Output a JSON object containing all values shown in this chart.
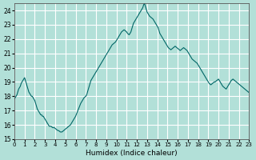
{
  "title": "",
  "xlabel": "Humidex (Indice chaleur)",
  "ylabel": "",
  "bg_color": "#b2e0d8",
  "grid_color": "#ffffff",
  "line_color": "#006666",
  "ylim": [
    15,
    24.5
  ],
  "xlim": [
    0,
    23
  ],
  "yticks": [
    15,
    16,
    17,
    18,
    19,
    20,
    21,
    22,
    23,
    24
  ],
  "xticks": [
    0,
    1,
    2,
    3,
    4,
    5,
    6,
    7,
    8,
    9,
    10,
    11,
    12,
    13,
    14,
    15,
    16,
    17,
    18,
    19,
    20,
    21,
    22,
    23
  ],
  "x": [
    0.0,
    0.083,
    0.167,
    0.25,
    0.333,
    0.417,
    0.5,
    0.583,
    0.667,
    0.75,
    0.833,
    0.917,
    1.0,
    1.083,
    1.167,
    1.25,
    1.333,
    1.417,
    1.5,
    1.583,
    1.667,
    1.75,
    1.833,
    1.917,
    2.0,
    2.083,
    2.167,
    2.25,
    2.333,
    2.417,
    2.5,
    2.583,
    2.667,
    2.75,
    2.833,
    2.917,
    3.0,
    3.083,
    3.167,
    3.25,
    3.333,
    3.417,
    3.5,
    3.583,
    3.667,
    3.75,
    3.833,
    3.917,
    4.0,
    4.083,
    4.167,
    4.25,
    4.333,
    4.417,
    4.5,
    4.583,
    4.667,
    4.75,
    4.833,
    4.917,
    5.0,
    5.083,
    5.167,
    5.25,
    5.333,
    5.417,
    5.5,
    5.583,
    5.667,
    5.75,
    5.833,
    5.917,
    6.0,
    6.083,
    6.167,
    6.25,
    6.333,
    6.417,
    6.5,
    6.583,
    6.667,
    6.75,
    6.833,
    6.917,
    7.0,
    7.083,
    7.167,
    7.25,
    7.333,
    7.417,
    7.5,
    7.583,
    7.667,
    7.75,
    7.833,
    7.917,
    8.0,
    8.083,
    8.167,
    8.25,
    8.333,
    8.417,
    8.5,
    8.583,
    8.667,
    8.75,
    8.833,
    8.917,
    9.0,
    9.083,
    9.167,
    9.25,
    9.333,
    9.417,
    9.5,
    9.583,
    9.667,
    9.75,
    9.833,
    9.917,
    10.0,
    10.083,
    10.167,
    10.25,
    10.333,
    10.417,
    10.5,
    10.583,
    10.667,
    10.75,
    10.833,
    10.917,
    11.0,
    11.083,
    11.167,
    11.25,
    11.333,
    11.417,
    11.5,
    11.583,
    11.667,
    11.75,
    11.833,
    11.917,
    12.0,
    12.083,
    12.167,
    12.25,
    12.333,
    12.417,
    12.5,
    12.583,
    12.667,
    12.75,
    12.833,
    12.917,
    13.0,
    13.083,
    13.167,
    13.25,
    13.333,
    13.417,
    13.5,
    13.583,
    13.667,
    13.75,
    13.833,
    13.917,
    14.0,
    14.083,
    14.167,
    14.25,
    14.333,
    14.417,
    14.5,
    14.583,
    14.667,
    14.75,
    14.833,
    14.917,
    15.0,
    15.083,
    15.167,
    15.25,
    15.333,
    15.417,
    15.5,
    15.583,
    15.667,
    15.75,
    15.833,
    15.917,
    16.0,
    16.083,
    16.167,
    16.25,
    16.333,
    16.417,
    16.5,
    16.583,
    16.667,
    16.75,
    16.833,
    16.917,
    17.0,
    17.083,
    17.167,
    17.25,
    17.333,
    17.417,
    17.5,
    17.583,
    17.667,
    17.75,
    17.833,
    17.917,
    18.0,
    18.083,
    18.167,
    18.25,
    18.333,
    18.417,
    18.5,
    18.583,
    18.667,
    18.75,
    18.833,
    18.917,
    19.0,
    19.083,
    19.167,
    19.25,
    19.333,
    19.417,
    19.5,
    19.583,
    19.667,
    19.75,
    19.833,
    19.917,
    20.0,
    20.083,
    20.167,
    20.25,
    20.333,
    20.417,
    20.5,
    20.583,
    20.667,
    20.75,
    20.833,
    20.917,
    21.0,
    21.083,
    21.167,
    21.25,
    21.333,
    21.417,
    21.5,
    21.583,
    21.667,
    21.75,
    21.833,
    21.917,
    22.0,
    22.083,
    22.167,
    22.25,
    22.333,
    22.417,
    22.5,
    22.583,
    22.667,
    22.75,
    22.833,
    22.917,
    23.0
  ],
  "y": [
    17.8,
    17.9,
    18.0,
    18.1,
    18.3,
    18.5,
    18.6,
    18.7,
    18.9,
    19.0,
    19.1,
    19.2,
    19.3,
    19.1,
    18.9,
    18.7,
    18.5,
    18.3,
    18.2,
    18.1,
    18.0,
    18.0,
    17.9,
    17.8,
    17.7,
    17.5,
    17.3,
    17.1,
    17.0,
    16.9,
    16.8,
    16.7,
    16.7,
    16.6,
    16.6,
    16.5,
    16.4,
    16.3,
    16.2,
    16.1,
    16.0,
    15.9,
    15.9,
    15.9,
    15.85,
    15.8,
    15.8,
    15.8,
    15.75,
    15.7,
    15.65,
    15.6,
    15.6,
    15.55,
    15.5,
    15.5,
    15.5,
    15.55,
    15.6,
    15.65,
    15.7,
    15.75,
    15.8,
    15.85,
    15.9,
    15.95,
    16.0,
    16.1,
    16.2,
    16.3,
    16.4,
    16.5,
    16.6,
    16.75,
    16.9,
    17.05,
    17.2,
    17.35,
    17.5,
    17.6,
    17.7,
    17.8,
    17.9,
    17.95,
    18.0,
    18.1,
    18.3,
    18.5,
    18.7,
    18.9,
    19.1,
    19.2,
    19.3,
    19.4,
    19.5,
    19.6,
    19.7,
    19.8,
    19.9,
    20.0,
    20.1,
    20.2,
    20.3,
    20.4,
    20.5,
    20.6,
    20.7,
    20.8,
    20.9,
    21.0,
    21.1,
    21.2,
    21.3,
    21.4,
    21.5,
    21.6,
    21.65,
    21.7,
    21.75,
    21.8,
    21.9,
    22.0,
    22.1,
    22.2,
    22.3,
    22.4,
    22.5,
    22.55,
    22.6,
    22.65,
    22.6,
    22.55,
    22.5,
    22.4,
    22.35,
    22.3,
    22.4,
    22.5,
    22.7,
    22.9,
    23.1,
    23.2,
    23.3,
    23.4,
    23.5,
    23.6,
    23.7,
    23.8,
    23.9,
    24.0,
    24.1,
    24.2,
    24.4,
    24.5,
    24.3,
    24.1,
    23.9,
    23.8,
    23.7,
    23.6,
    23.55,
    23.5,
    23.45,
    23.4,
    23.3,
    23.2,
    23.1,
    23.0,
    22.9,
    22.8,
    22.6,
    22.4,
    22.3,
    22.2,
    22.1,
    22.0,
    21.9,
    21.8,
    21.7,
    21.6,
    21.5,
    21.4,
    21.35,
    21.3,
    21.25,
    21.3,
    21.35,
    21.4,
    21.45,
    21.5,
    21.45,
    21.4,
    21.35,
    21.3,
    21.25,
    21.2,
    21.25,
    21.3,
    21.35,
    21.4,
    21.35,
    21.3,
    21.25,
    21.2,
    21.1,
    21.0,
    20.9,
    20.8,
    20.7,
    20.6,
    20.55,
    20.5,
    20.45,
    20.4,
    20.35,
    20.3,
    20.2,
    20.1,
    20.0,
    19.9,
    19.8,
    19.7,
    19.6,
    19.5,
    19.4,
    19.3,
    19.2,
    19.1,
    19.0,
    18.9,
    18.85,
    18.8,
    18.85,
    18.9,
    18.95,
    19.0,
    19.0,
    19.05,
    19.1,
    19.15,
    19.2,
    19.1,
    19.0,
    18.9,
    18.8,
    18.7,
    18.65,
    18.6,
    18.55,
    18.5,
    18.6,
    18.7,
    18.8,
    18.9,
    19.0,
    19.1,
    19.15,
    19.2,
    19.15,
    19.1,
    19.05,
    19.0,
    18.95,
    18.9,
    18.85,
    18.8,
    18.75,
    18.7,
    18.65,
    18.6,
    18.55,
    18.5,
    18.45,
    18.4,
    18.35,
    18.3,
    18.25
  ]
}
